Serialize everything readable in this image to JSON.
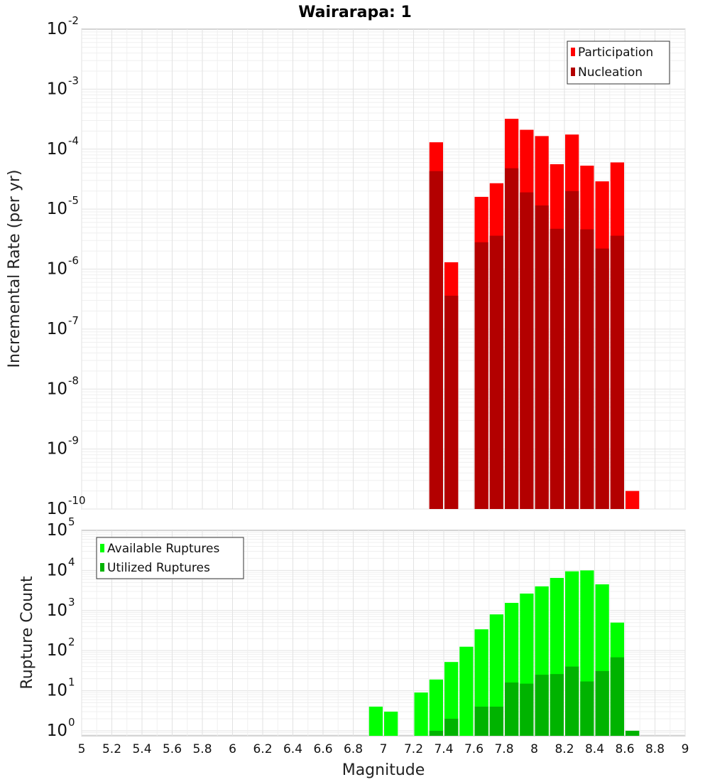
{
  "chart_data": [
    {
      "type": "bar",
      "title": "Wairarapa: 1",
      "xlabel": "",
      "ylabel": "Incremental Rate (per yr)",
      "xlim": [
        5,
        9
      ],
      "ylim": [
        1e-10,
        0.01
      ],
      "yscale": "log",
      "grid": true,
      "legend_position": "top-right",
      "bin_width": 0.1,
      "x": [
        7.35,
        7.45,
        7.65,
        7.75,
        7.85,
        7.95,
        8.05,
        8.15,
        8.25,
        8.35,
        8.45,
        8.55,
        8.65
      ],
      "series": [
        {
          "name": "Participation",
          "color": "#ff0000",
          "values": [
            0.00013,
            1.3e-06,
            1.6e-05,
            2.7e-05,
            0.00032,
            0.00021,
            0.000165,
            5.6e-05,
            0.000175,
            5.3e-05,
            2.9e-05,
            6e-05,
            2e-10
          ]
        },
        {
          "name": "Nucleation",
          "color": "#b30000",
          "values": [
            4.3e-05,
            3.6e-07,
            2.8e-06,
            3.6e-06,
            4.8e-05,
            1.9e-05,
            1.15e-05,
            4.7e-06,
            2e-05,
            4.6e-06,
            2.2e-06,
            3.6e-06,
            null
          ]
        }
      ]
    },
    {
      "type": "bar",
      "title": "",
      "xlabel": "Magnitude",
      "ylabel": "Rupture Count",
      "xlim": [
        5,
        9
      ],
      "ylim": [
        0.75,
        100000
      ],
      "yscale": "log",
      "grid": true,
      "legend_position": "top-left",
      "bin_width": 0.1,
      "x": [
        6.95,
        7.05,
        7.25,
        7.35,
        7.45,
        7.55,
        7.65,
        7.75,
        7.85,
        7.95,
        8.05,
        8.15,
        8.25,
        8.35,
        8.45,
        8.55,
        8.65
      ],
      "series": [
        {
          "name": "Available Ruptures",
          "color": "#00ff00",
          "values": [
            4,
            3,
            9,
            19,
            52,
            125,
            340,
            800,
            1550,
            2650,
            4000,
            6500,
            9500,
            10000,
            4500,
            500,
            1
          ]
        },
        {
          "name": "Utilized Ruptures",
          "color": "#00b300",
          "values": [
            null,
            null,
            null,
            1,
            2,
            null,
            4,
            4,
            16,
            15,
            25,
            26,
            40,
            17,
            31,
            68,
            1
          ]
        }
      ]
    }
  ],
  "x_ticks": [
    "5",
    "5.2",
    "5.4",
    "5.6",
    "5.8",
    "6",
    "6.2",
    "6.4",
    "6.6",
    "6.8",
    "7",
    "7.2",
    "7.4",
    "7.6",
    "7.8",
    "8",
    "8.2",
    "8.4",
    "8.6",
    "8.8",
    "9"
  ],
  "top_ticks": [
    {
      "base": "10",
      "exp": "-2",
      "value": 0.01
    },
    {
      "base": "10",
      "exp": "-3",
      "value": 0.001
    },
    {
      "base": "10",
      "exp": "-4",
      "value": 0.0001
    },
    {
      "base": "10",
      "exp": "-5",
      "value": 1e-05
    },
    {
      "base": "10",
      "exp": "-6",
      "value": 1e-06
    },
    {
      "base": "10",
      "exp": "-7",
      "value": 1e-07
    },
    {
      "base": "10",
      "exp": "-8",
      "value": 1e-08
    },
    {
      "base": "10",
      "exp": "-9",
      "value": 1e-09
    },
    {
      "base": "10",
      "exp": "-10",
      "value": 1e-10
    }
  ],
  "bottom_ticks": [
    {
      "base": "10",
      "exp": "5",
      "value": 100000.0
    },
    {
      "base": "10",
      "exp": "4",
      "value": 10000.0
    },
    {
      "base": "10",
      "exp": "3",
      "value": 1000.0
    },
    {
      "base": "10",
      "exp": "2",
      "value": 100.0
    },
    {
      "base": "10",
      "exp": "1",
      "value": 10.0
    },
    {
      "base": "10",
      "exp": "0",
      "value": 1.0
    }
  ]
}
